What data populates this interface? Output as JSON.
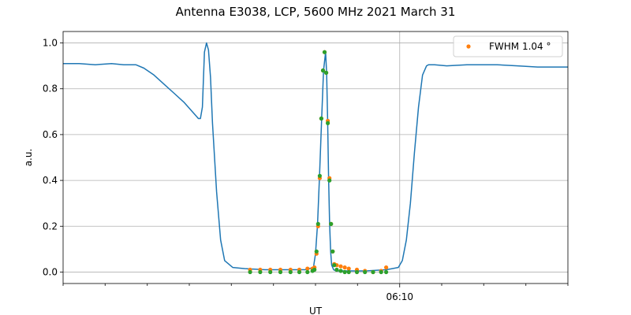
{
  "chart_data": {
    "type": "line",
    "title": "Antenna E3038, LCP, 5600 MHz 2021 March 31",
    "xlabel": "UT",
    "ylabel": "a.u.",
    "x_unit": "minutes (UT)",
    "xlim": [
      6.0,
      6.25
    ],
    "ylim": [
      -0.05,
      1.05
    ],
    "yticks": [
      0.0,
      0.2,
      0.4,
      0.6,
      0.8,
      1.0
    ],
    "ytick_labels": [
      "0.0",
      "0.2",
      "0.4",
      "0.6",
      "0.8",
      "1.0"
    ],
    "xticks_major": [
      {
        "x": 6.1667,
        "label": "06:10"
      }
    ],
    "xticks_minor": [
      6.0,
      6.0208,
      6.0417,
      6.0625,
      6.0833,
      6.1042,
      6.125,
      6.1458,
      6.1875,
      6.2083,
      6.2292,
      6.25
    ],
    "grid": true,
    "legend": {
      "position": "top-right",
      "label": "FWHM 1.04$^\\circ$",
      "display": "FWHM 1.04 °"
    },
    "colors": {
      "line": "#1f77b4",
      "points_a": "#ff7f0e",
      "points_b": "#2ca02c",
      "grid": "#b0b0b0"
    },
    "series": [
      {
        "kind": "line",
        "x": [
          6.0,
          6.008,
          6.016,
          6.024,
          6.03,
          6.036,
          6.04,
          6.045,
          6.05,
          6.055,
          6.06,
          6.064,
          6.066,
          6.067,
          6.068,
          6.069,
          6.07,
          6.071,
          6.072,
          6.073,
          6.074,
          6.076,
          6.078,
          6.08,
          6.084,
          6.09,
          6.1,
          6.11,
          6.12,
          6.124,
          6.125,
          6.126,
          6.127,
          6.128,
          6.129,
          6.13,
          6.1305,
          6.131,
          6.1315,
          6.132,
          6.1325,
          6.133,
          6.134,
          6.135,
          6.136,
          6.14,
          6.15,
          6.16,
          6.163,
          6.166,
          6.168,
          6.17,
          6.172,
          6.174,
          6.176,
          6.178,
          6.18,
          6.181,
          6.182,
          6.183,
          6.184,
          6.19,
          6.2,
          6.215,
          6.225,
          6.235,
          6.25
        ],
        "y": [
          0.91,
          0.91,
          0.905,
          0.91,
          0.905,
          0.905,
          0.89,
          0.86,
          0.82,
          0.78,
          0.74,
          0.7,
          0.68,
          0.67,
          0.67,
          0.72,
          0.96,
          1.0,
          0.97,
          0.85,
          0.65,
          0.35,
          0.14,
          0.05,
          0.02,
          0.015,
          0.01,
          0.01,
          0.01,
          0.02,
          0.08,
          0.21,
          0.42,
          0.66,
          0.88,
          0.96,
          0.87,
          0.66,
          0.41,
          0.21,
          0.09,
          0.03,
          0.01,
          0.005,
          0.005,
          0.005,
          0.005,
          0.01,
          0.015,
          0.02,
          0.05,
          0.14,
          0.3,
          0.52,
          0.72,
          0.86,
          0.9,
          0.905,
          0.905,
          0.905,
          0.905,
          0.9,
          0.905,
          0.905,
          0.9,
          0.895,
          0.895
        ]
      },
      {
        "kind": "scatter",
        "name": "FWHM 1.04 °",
        "color": "#ff7f0e",
        "x": [
          6.0926,
          6.0976,
          6.1026,
          6.1076,
          6.1126,
          6.117,
          6.121,
          6.1235,
          6.1245,
          6.1255,
          6.1263,
          6.1271,
          6.1279,
          6.1287,
          6.1295,
          6.1303,
          6.1311,
          6.1319,
          6.1327,
          6.1335,
          6.1343,
          6.1355,
          6.1375,
          6.1395,
          6.1415,
          6.1455,
          6.1495,
          6.1535,
          6.1575,
          6.16
        ],
        "y": [
          0.01,
          0.01,
          0.01,
          0.01,
          0.01,
          0.01,
          0.015,
          0.015,
          0.02,
          0.08,
          0.2,
          0.41,
          0.67,
          0.88,
          0.96,
          0.87,
          0.66,
          0.41,
          0.21,
          0.09,
          0.035,
          0.03,
          0.025,
          0.02,
          0.015,
          0.01,
          0.005,
          0.0,
          0.005,
          0.02
        ]
      },
      {
        "kind": "scatter",
        "color": "#2ca02c",
        "x": [
          6.0926,
          6.0976,
          6.1026,
          6.1076,
          6.1126,
          6.117,
          6.121,
          6.1235,
          6.1245,
          6.1255,
          6.1263,
          6.1271,
          6.1279,
          6.1287,
          6.1295,
          6.1303,
          6.1311,
          6.1319,
          6.1327,
          6.1335,
          6.1343,
          6.1355,
          6.1375,
          6.1395,
          6.1415,
          6.1455,
          6.1495,
          6.1535,
          6.1575,
          6.16
        ],
        "y": [
          0.0,
          0.0,
          0.0,
          0.0,
          0.0,
          0.0,
          0.0,
          0.005,
          0.01,
          0.09,
          0.21,
          0.42,
          0.67,
          0.88,
          0.96,
          0.87,
          0.65,
          0.4,
          0.21,
          0.09,
          0.03,
          0.01,
          0.005,
          0.0,
          0.0,
          0.0,
          0.0,
          0.0,
          0.0,
          0.0
        ]
      }
    ]
  }
}
